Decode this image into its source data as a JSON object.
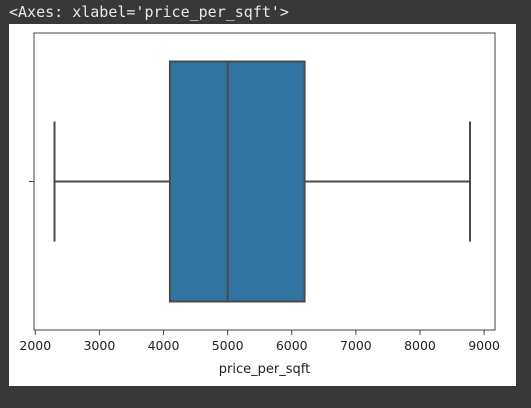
{
  "output_repr": "<Axes: xlabel='price_per_sqft'>",
  "chart_data": {
    "type": "box",
    "orientation": "horizontal",
    "xlabel": "price_per_sqft",
    "xlim": [
      1980,
      9170
    ],
    "xticks": [
      2000,
      3000,
      4000,
      5000,
      6000,
      7000,
      8000,
      9000
    ],
    "box": {
      "whisker_low": 2300,
      "q1": 4100,
      "median": 5000,
      "q3": 6200,
      "whisker_high": 8780
    },
    "colors": {
      "box_fill": "#3274a1",
      "line": "#4a4a4a"
    },
    "grid": false
  }
}
